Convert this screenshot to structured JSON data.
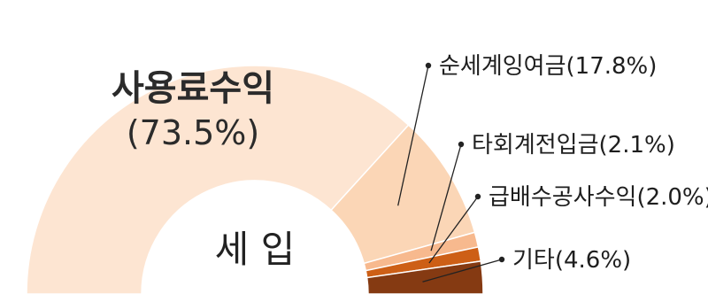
{
  "chart_data": {
    "type": "pie",
    "variant": "half-donut",
    "center_label": "세 입",
    "slices": [
      {
        "label": "사용료수익",
        "value": 73.5,
        "value_text": "(73.5%)",
        "color": "#fde5d2"
      },
      {
        "label": "순세계잉여금",
        "value": 17.8,
        "value_text": "(17.8%)",
        "color": "#fbd6b6"
      },
      {
        "label": "타회계전입금",
        "value": 2.1,
        "value_text": "(2.1%)",
        "color": "#f7b98e"
      },
      {
        "label": "급배수공사수익",
        "value": 2.0,
        "value_text": "(2.0%)",
        "color": "#cd5f16"
      },
      {
        "label": "기타",
        "value": 4.6,
        "value_text": "(4.6%)",
        "color": "#853a12"
      }
    ]
  }
}
